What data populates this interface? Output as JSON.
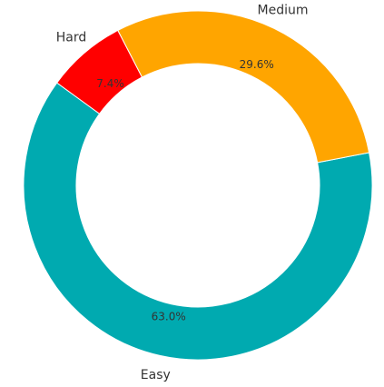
{
  "chart_data": {
    "type": "pie",
    "style": "donut",
    "title": "",
    "categories": [
      "Easy",
      "Medium",
      "Hard"
    ],
    "values": [
      63.0,
      29.6,
      7.4
    ],
    "value_labels": [
      "63.0%",
      "29.6%",
      "7.4%"
    ],
    "colors": [
      "#00aab0",
      "#ffa500",
      "#ff0000"
    ],
    "legend": "none"
  }
}
